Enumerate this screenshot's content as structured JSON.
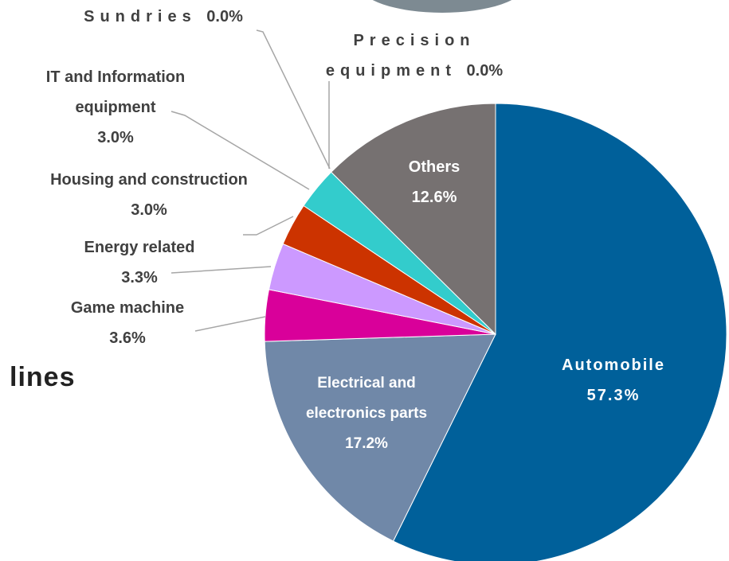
{
  "page": {
    "heading_fragment": "lines"
  },
  "chart_data": {
    "type": "pie",
    "categories": [
      "Automobile",
      "Electrical and electronics parts",
      "Game machine",
      "Energy related",
      "Housing and construction",
      "IT and Information equipment",
      "Sundries",
      "Precision equipment",
      "Others"
    ],
    "values": [
      57.3,
      17.2,
      3.6,
      3.3,
      3.0,
      3.0,
      0.0,
      0.0,
      12.6
    ],
    "value_labels": [
      "57.3%",
      "17.2%",
      "3.6%",
      "3.3%",
      "3.0%",
      "3.0%",
      "0.0%",
      "0.0%",
      "12.6%"
    ],
    "colors": [
      "#00609a",
      "#7088a8",
      "#d9009a",
      "#cc99ff",
      "#cc3300",
      "#33cccc",
      null,
      null,
      "#767171"
    ]
  }
}
